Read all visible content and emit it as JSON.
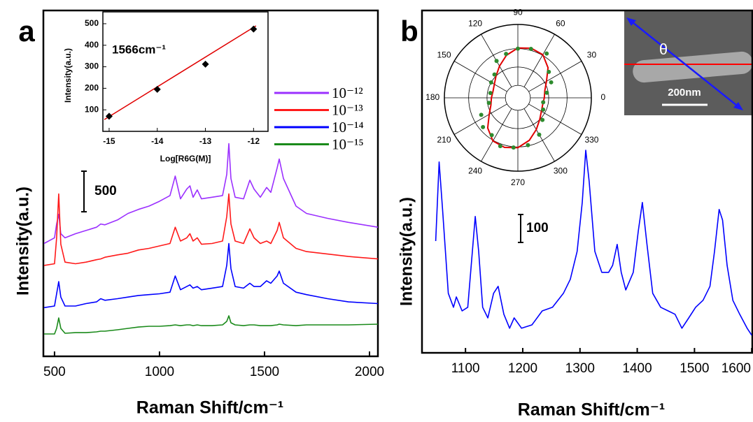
{
  "chart_data": [
    {
      "type": "line",
      "panel_label": "a",
      "xlabel": "Raman Shift/cm⁻¹",
      "ylabel": "Intensity(a.u.)",
      "x": [
        450,
        500,
        510,
        520,
        530,
        550,
        600,
        650,
        700,
        720,
        740,
        800,
        850,
        900,
        950,
        1000,
        1050,
        1075,
        1100,
        1130,
        1145,
        1160,
        1180,
        1200,
        1250,
        1300,
        1320,
        1330,
        1340,
        1360,
        1400,
        1430,
        1450,
        1480,
        1510,
        1530,
        1560,
        1570,
        1590,
        1650,
        1700,
        1800,
        1900,
        2040
      ],
      "series": [
        {
          "name": "10⁻¹²",
          "color": "#9b30ff",
          "values": [
            1390,
            1460,
            1630,
            1750,
            1510,
            1460,
            1510,
            1550,
            1590,
            1630,
            1620,
            1680,
            1760,
            1810,
            1850,
            1910,
            1980,
            2220,
            1940,
            2060,
            2100,
            1960,
            2050,
            1940,
            1960,
            1980,
            2240,
            2620,
            2190,
            1960,
            1940,
            2170,
            2060,
            1960,
            2080,
            2020,
            2320,
            2430,
            2190,
            1850,
            1760,
            1700,
            1650,
            1590
          ]
        },
        {
          "name": "10⁻¹³",
          "color": "#ff1a1a",
          "values": [
            1120,
            1140,
            1460,
            2000,
            1380,
            1160,
            1140,
            1160,
            1190,
            1200,
            1220,
            1250,
            1270,
            1310,
            1330,
            1360,
            1390,
            1590,
            1420,
            1460,
            1510,
            1420,
            1460,
            1380,
            1390,
            1420,
            1720,
            2000,
            1630,
            1420,
            1390,
            1570,
            1460,
            1390,
            1420,
            1390,
            1550,
            1650,
            1460,
            1330,
            1290,
            1260,
            1230,
            1200
          ]
        },
        {
          "name": "10⁻¹⁴",
          "color": "#0000ff",
          "values": [
            600,
            620,
            770,
            920,
            730,
            620,
            620,
            650,
            670,
            710,
            690,
            710,
            730,
            750,
            760,
            770,
            790,
            990,
            820,
            860,
            880,
            840,
            860,
            820,
            840,
            860,
            1120,
            1390,
            1080,
            860,
            840,
            900,
            860,
            860,
            930,
            900,
            990,
            1050,
            900,
            790,
            760,
            710,
            670,
            650
          ]
        },
        {
          "name": "10⁻¹⁵",
          "color": "#1a8a1a",
          "values": [
            275,
            275,
            344,
            473,
            344,
            284,
            292,
            292,
            301,
            310,
            310,
            327,
            344,
            361,
            370,
            370,
            378,
            387,
            378,
            387,
            387,
            378,
            387,
            378,
            378,
            387,
            430,
            499,
            413,
            387,
            378,
            387,
            387,
            378,
            378,
            378,
            387,
            396,
            387,
            378,
            387,
            387,
            387,
            396
          ]
        }
      ],
      "xlim": [
        447,
        2040
      ],
      "ylim": [
        0,
        4260
      ],
      "xticks": [
        500,
        1000,
        1500,
        2000
      ],
      "scale_bar": 500,
      "legend": "right"
    },
    {
      "type": "scatter",
      "title": "1566cm⁻¹",
      "xlabel": "Log[R6G(M)]",
      "ylabel": "Intensity(a.u.)",
      "x": [
        -15,
        -14,
        -13,
        -12
      ],
      "values": [
        70,
        195,
        312,
        475
      ],
      "color": "#000000",
      "fit": {
        "x": [
          -15.1,
          -11.95
        ],
        "values": [
          55,
          490
        ],
        "color": "#e00000"
      },
      "xlim": [
        -15.13,
        -11.7
      ],
      "ylim": [
        0,
        555
      ],
      "xticks": [
        -15,
        -14,
        -13,
        -12
      ],
      "yticks": [
        100,
        200,
        300,
        400,
        500
      ]
    },
    {
      "type": "line",
      "panel_label": "b",
      "xlabel": "Raman Shift/cm⁻¹",
      "ylabel": "Intensity(a.u.)",
      "x": [
        1048,
        1054,
        1060,
        1070,
        1079,
        1084,
        1094,
        1104,
        1112,
        1117,
        1123,
        1130,
        1139,
        1149,
        1157,
        1167,
        1177,
        1185,
        1198,
        1216,
        1234,
        1252,
        1271,
        1283,
        1295,
        1304,
        1310,
        1316,
        1326,
        1338,
        1350,
        1357,
        1365,
        1372,
        1380,
        1393,
        1402,
        1409,
        1417,
        1427,
        1441,
        1454,
        1466,
        1478,
        1490,
        1502,
        1515,
        1527,
        1535,
        1543,
        1549,
        1557,
        1567,
        1579,
        1592,
        1600
      ],
      "series": [
        {
          "color": "#0000ff",
          "values": [
            400,
            683,
            513,
            213,
            163,
            200,
            150,
            163,
            363,
            488,
            363,
            163,
            125,
            213,
            238,
            138,
            88,
            125,
            88,
            100,
            150,
            163,
            213,
            263,
            363,
            538,
            725,
            613,
            363,
            288,
            288,
            313,
            388,
            288,
            225,
            288,
            438,
            538,
            388,
            213,
            163,
            150,
            138,
            88,
            125,
            163,
            188,
            238,
            363,
            513,
            475,
            313,
            188,
            138,
            88,
            63
          ]
        }
      ],
      "xlim": [
        1024,
        1601
      ],
      "ylim": [
        0,
        1225
      ],
      "xticks": [
        1100,
        1200,
        1300,
        1400,
        1500,
        1600
      ],
      "scale_bar": 100,
      "image": {
        "angle_label": "θ",
        "scale_bar_label": "200nm"
      }
    },
    {
      "type": "polar",
      "angle_ticks": [
        0,
        30,
        60,
        90,
        120,
        150,
        180,
        210,
        240,
        270,
        300,
        330
      ],
      "rlim": [
        0,
        1
      ],
      "points": {
        "color": "#2e8b2e",
        "theta": [
          90,
          75,
          57,
          40,
          25,
          10,
          350,
          335,
          318,
          300,
          282,
          265,
          250,
          235,
          220,
          205,
          190,
          170,
          150,
          135,
          120,
          105
        ],
        "r": [
          0.67,
          0.69,
          0.72,
          0.55,
          0.5,
          0.4,
          0.35,
          0.38,
          0.45,
          0.58,
          0.66,
          0.68,
          0.7,
          0.62,
          0.62,
          0.55,
          0.4,
          0.38,
          0.42,
          0.45,
          0.58,
          0.62
        ]
      },
      "curve": {
        "color": "#e00000",
        "theta": [
          0,
          15,
          30,
          45,
          60,
          75,
          90,
          105,
          120,
          135,
          150,
          165,
          180,
          195,
          210,
          225,
          240,
          255,
          270,
          285,
          300,
          315,
          330,
          345
        ],
        "r": [
          0.36,
          0.38,
          0.45,
          0.58,
          0.68,
          0.7,
          0.68,
          0.6,
          0.5,
          0.42,
          0.37,
          0.35,
          0.36,
          0.38,
          0.45,
          0.58,
          0.68,
          0.7,
          0.68,
          0.6,
          0.5,
          0.42,
          0.37,
          0.35
        ]
      }
    }
  ]
}
